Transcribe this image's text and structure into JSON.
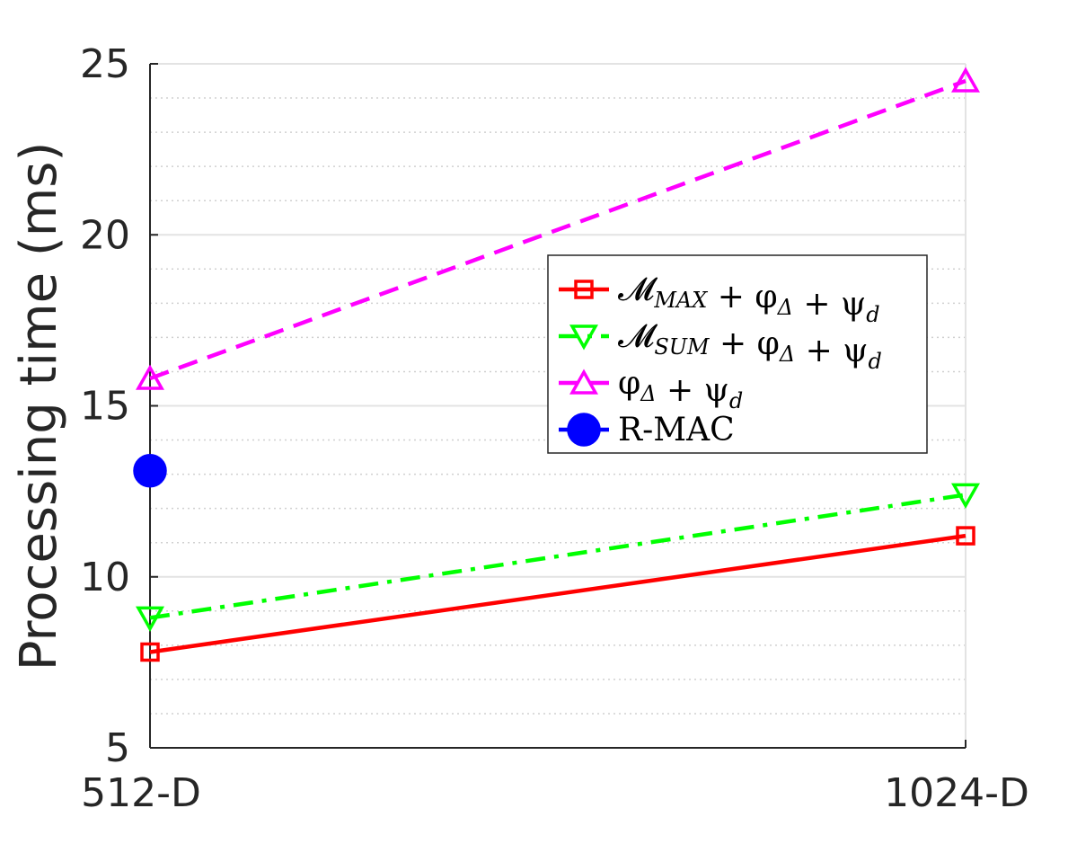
{
  "chart_data": {
    "type": "line",
    "title": "",
    "xlabel": "",
    "ylabel": "Processing time (ms)",
    "categories": [
      "512-D",
      "1024-D"
    ],
    "ylim": [
      5,
      25
    ],
    "yticks": [
      5,
      10,
      15,
      20,
      25
    ],
    "grid": true,
    "legend_position": "right",
    "series": [
      {
        "name": "M_MAX + φ_Δ + ψ_d",
        "name_main": "𝓜",
        "name_sub": "MAX",
        "name_rest": " + φ",
        "name_rest_sub": "Δ",
        "name_tail": " + ψ",
        "name_tail_sub": "d",
        "values": [
          7.8,
          11.2
        ],
        "color": "#ff0000",
        "marker": "square",
        "line_style": "solid"
      },
      {
        "name": "M_SUM + φ_Δ + ψ_d",
        "name_main": "𝓜",
        "name_sub": "SUM",
        "name_rest": " + φ",
        "name_rest_sub": "Δ",
        "name_tail": " + ψ",
        "name_tail_sub": "d",
        "values": [
          8.8,
          12.4
        ],
        "color": "#00ff00",
        "marker": "triangle-down",
        "line_style": "dashdot"
      },
      {
        "name": "φ_Δ + ψ_d",
        "name_main": "φ",
        "name_sub": "Δ",
        "name_rest": " + ψ",
        "name_rest_sub": "d",
        "name_tail": "",
        "name_tail_sub": "",
        "values": [
          15.8,
          24.5
        ],
        "color": "#ff00ff",
        "marker": "triangle-up",
        "line_style": "dashed"
      },
      {
        "name": "R-MAC",
        "name_main": "R-MAC",
        "name_sub": "",
        "name_rest": "",
        "name_rest_sub": "",
        "name_tail": "",
        "name_tail_sub": "",
        "values": [
          13.1,
          null
        ],
        "color": "#0000ff",
        "marker": "circle-filled",
        "line_style": "solid"
      }
    ]
  }
}
